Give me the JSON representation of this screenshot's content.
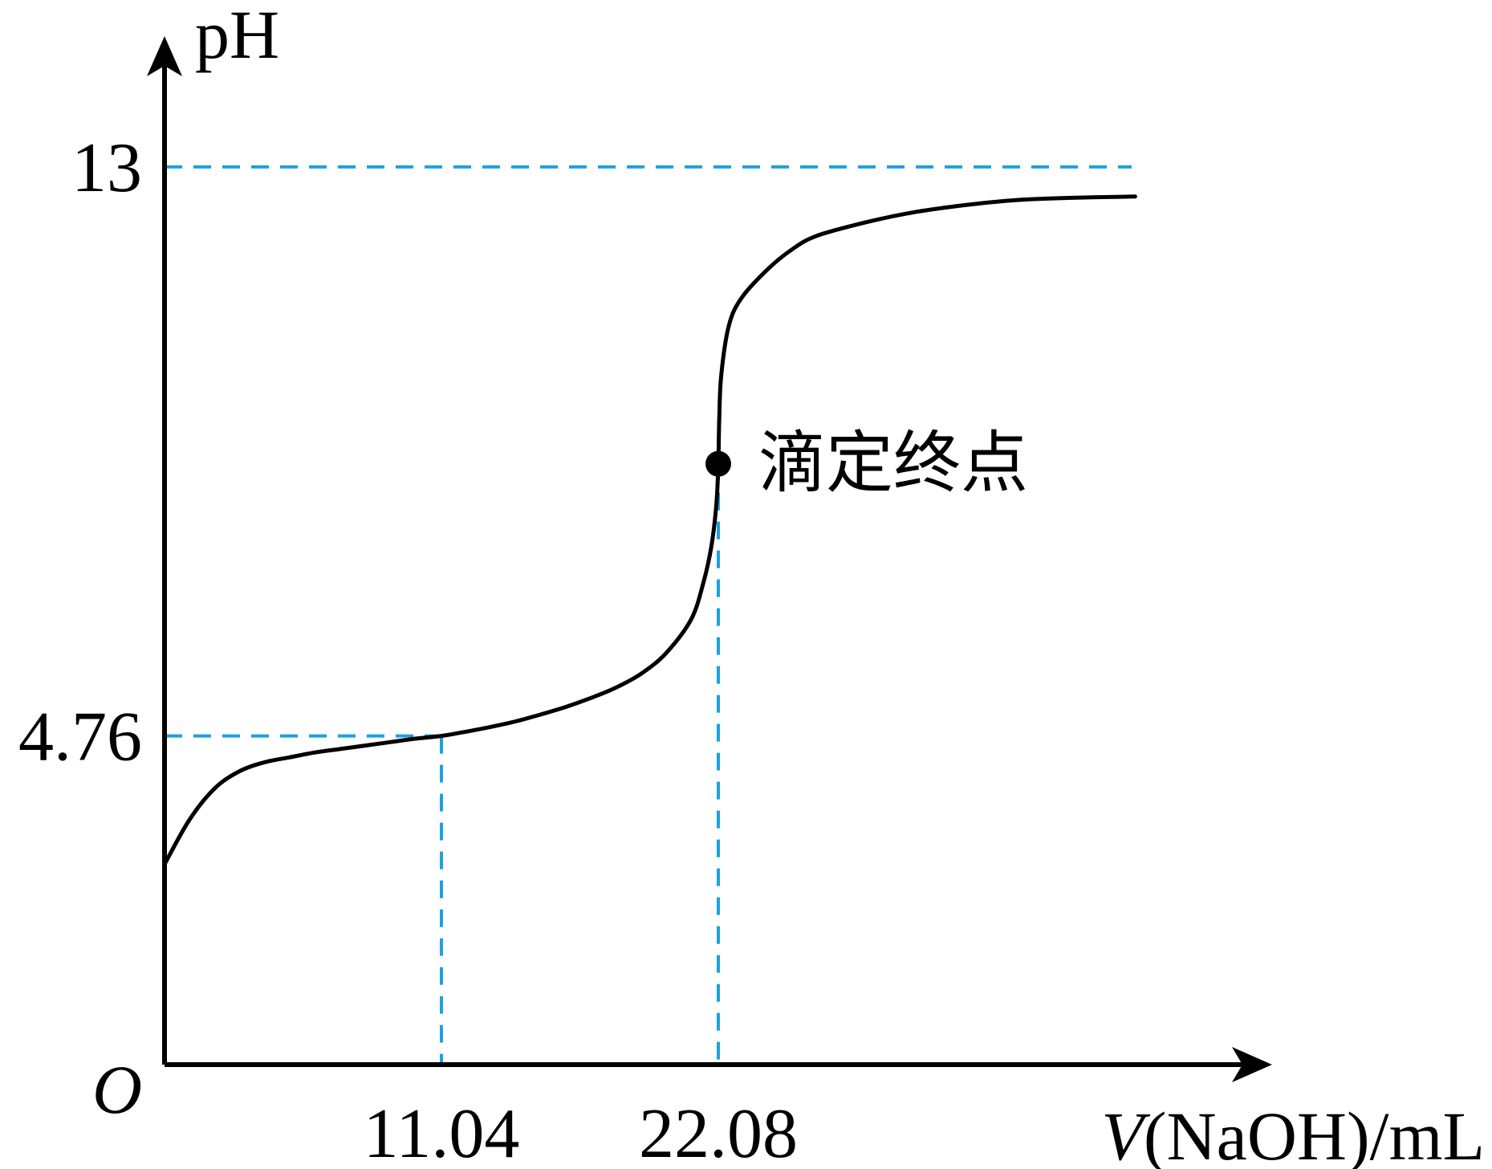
{
  "chart_data": {
    "type": "line",
    "title": "",
    "xlabel": {
      "italic": "V",
      "rest": "(NaOH)/mL"
    },
    "ylabel": "pH",
    "origin_label": "O",
    "x_ticks": [
      {
        "value": 11.04,
        "label": "11.04"
      },
      {
        "value": 22.08,
        "label": "22.08"
      }
    ],
    "y_ticks": [
      {
        "value": 4.76,
        "label": "4.76"
      },
      {
        "value": 13,
        "label": "13"
      }
    ],
    "xlim": [
      0,
      44
    ],
    "ylim": [
      0,
      15.3
    ],
    "guides": {
      "color": "#1BA1E2",
      "horizontal": [
        13,
        4.76
      ],
      "vertical": [
        11.04,
        22.08
      ]
    },
    "series": [
      {
        "color": "#000000",
        "points": [
          [
            0,
            2.9
          ],
          [
            1,
            3.55
          ],
          [
            2,
            4.0
          ],
          [
            3,
            4.25
          ],
          [
            4,
            4.38
          ],
          [
            5,
            4.45
          ],
          [
            6,
            4.52
          ],
          [
            7,
            4.57
          ],
          [
            8,
            4.62
          ],
          [
            9,
            4.67
          ],
          [
            10,
            4.72
          ],
          [
            11.04,
            4.76
          ],
          [
            12,
            4.82
          ],
          [
            13,
            4.89
          ],
          [
            14,
            4.97
          ],
          [
            15,
            5.07
          ],
          [
            16,
            5.18
          ],
          [
            17,
            5.31
          ],
          [
            18,
            5.46
          ],
          [
            19,
            5.66
          ],
          [
            20,
            5.96
          ],
          [
            21,
            6.45
          ],
          [
            21.5,
            7.0
          ],
          [
            21.8,
            7.5
          ],
          [
            22.0,
            8.1
          ],
          [
            22.08,
            8.7
          ],
          [
            22.12,
            9.4
          ],
          [
            22.2,
            10.0
          ],
          [
            22.5,
            10.7
          ],
          [
            23,
            11.1
          ],
          [
            24,
            11.5
          ],
          [
            25,
            11.8
          ],
          [
            26,
            12.0
          ],
          [
            28,
            12.2
          ],
          [
            30,
            12.35
          ],
          [
            32,
            12.45
          ],
          [
            34,
            12.52
          ],
          [
            36,
            12.55
          ],
          [
            38.7,
            12.57
          ]
        ]
      }
    ],
    "marker": {
      "x": 22.08,
      "y": 8.7,
      "label": "滴定终点"
    },
    "grid": false,
    "legend": "none"
  }
}
